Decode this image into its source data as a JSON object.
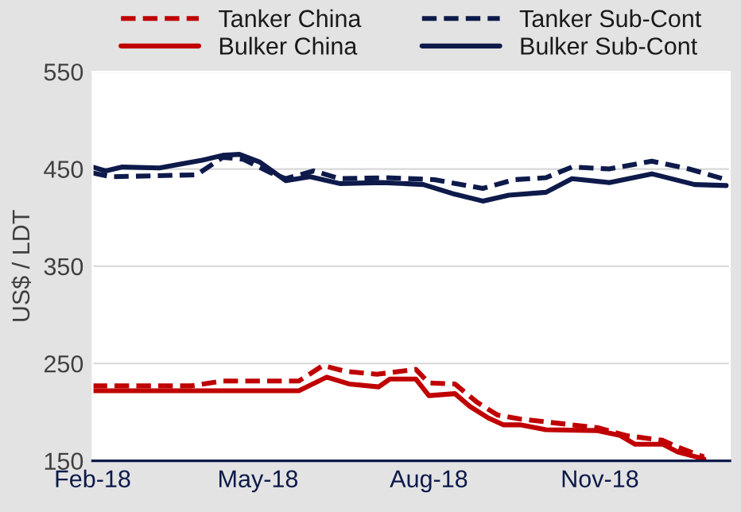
{
  "chart_data": {
    "type": "line",
    "ylabel": "US$ / LDT",
    "xlim": [
      "2018-02-01",
      "2019-01-10"
    ],
    "xticks": [
      {
        "value": "2018-02-01",
        "label": "Feb-18"
      },
      {
        "value": "2018-05-01",
        "label": "May-18"
      },
      {
        "value": "2018-08-01",
        "label": "Aug-18"
      },
      {
        "value": "2018-11-01",
        "label": "Nov-18"
      }
    ],
    "ylim": [
      150,
      550
    ],
    "yticks": [
      150,
      250,
      350,
      450,
      550
    ],
    "grid": "y",
    "legend": "top",
    "marker": "none",
    "series": [
      {
        "name": "Tanker China",
        "color": "#c00000",
        "line_style": "dashed",
        "x": [
          "2018-02-01",
          "2018-03-26",
          "2018-04-12",
          "2018-05-23",
          "2018-06-05",
          "2018-06-17",
          "2018-07-04",
          "2018-07-25",
          "2018-08-01",
          "2018-08-15",
          "2018-08-27",
          "2018-09-07",
          "2018-09-19",
          "2018-10-31",
          "2018-11-15",
          "2018-12-05",
          "2018-12-13",
          "2018-12-27"
        ],
        "values": [
          227,
          227,
          232,
          232,
          248,
          242,
          239,
          244,
          230,
          229,
          210,
          197,
          193,
          184,
          176,
          171,
          164,
          154
        ]
      },
      {
        "name": "Bulker China",
        "color": "#c00000",
        "line_style": "solid",
        "x": [
          "2018-02-01",
          "2018-05-23",
          "2018-06-07",
          "2018-06-19",
          "2018-07-05",
          "2018-07-11",
          "2018-07-25",
          "2018-08-01",
          "2018-08-15",
          "2018-08-23",
          "2018-09-02",
          "2018-09-10",
          "2018-09-19",
          "2018-10-03",
          "2018-10-31",
          "2018-11-12",
          "2018-11-20",
          "2018-12-05",
          "2018-12-13",
          "2018-12-27"
        ],
        "values": [
          222,
          222,
          236,
          229,
          226,
          234,
          234,
          217,
          219,
          206,
          194,
          187,
          187,
          182,
          181,
          176,
          167,
          167,
          159,
          152
        ]
      },
      {
        "name": "Tanker Sub-Cont",
        "color": "#0d1a4a",
        "line_style": "dashed",
        "x": [
          "2018-02-01",
          "2018-02-11",
          "2018-03-29",
          "2018-04-12",
          "2018-04-23",
          "2018-05-08",
          "2018-05-16",
          "2018-05-31",
          "2018-06-14",
          "2018-07-09",
          "2018-08-04",
          "2018-08-30",
          "2018-09-16",
          "2018-10-03",
          "2018-10-17",
          "2018-11-06",
          "2018-11-29",
          "2018-12-19",
          "2019-01-08"
        ],
        "values": [
          446,
          442,
          444,
          462,
          460,
          446,
          440,
          448,
          440,
          441,
          439,
          430,
          439,
          441,
          452,
          450,
          458,
          450,
          439
        ]
      },
      {
        "name": "Bulker Sub-Cont",
        "color": "#0d1a4a",
        "line_style": "solid",
        "x": [
          "2018-02-01",
          "2018-02-08",
          "2018-02-17",
          "2018-03-09",
          "2018-03-20",
          "2018-04-01",
          "2018-04-12",
          "2018-04-21",
          "2018-05-02",
          "2018-05-16",
          "2018-05-29",
          "2018-06-14",
          "2018-07-07",
          "2018-07-29",
          "2018-08-15",
          "2018-08-30",
          "2018-09-13",
          "2018-10-03",
          "2018-10-17",
          "2018-11-06",
          "2018-11-29",
          "2018-12-22",
          "2019-01-08"
        ],
        "values": [
          452,
          448,
          452,
          451,
          455,
          459,
          464,
          465,
          457,
          438,
          442,
          435,
          436,
          434,
          424,
          417,
          423,
          426,
          440,
          436,
          445,
          434,
          433
        ]
      }
    ]
  }
}
